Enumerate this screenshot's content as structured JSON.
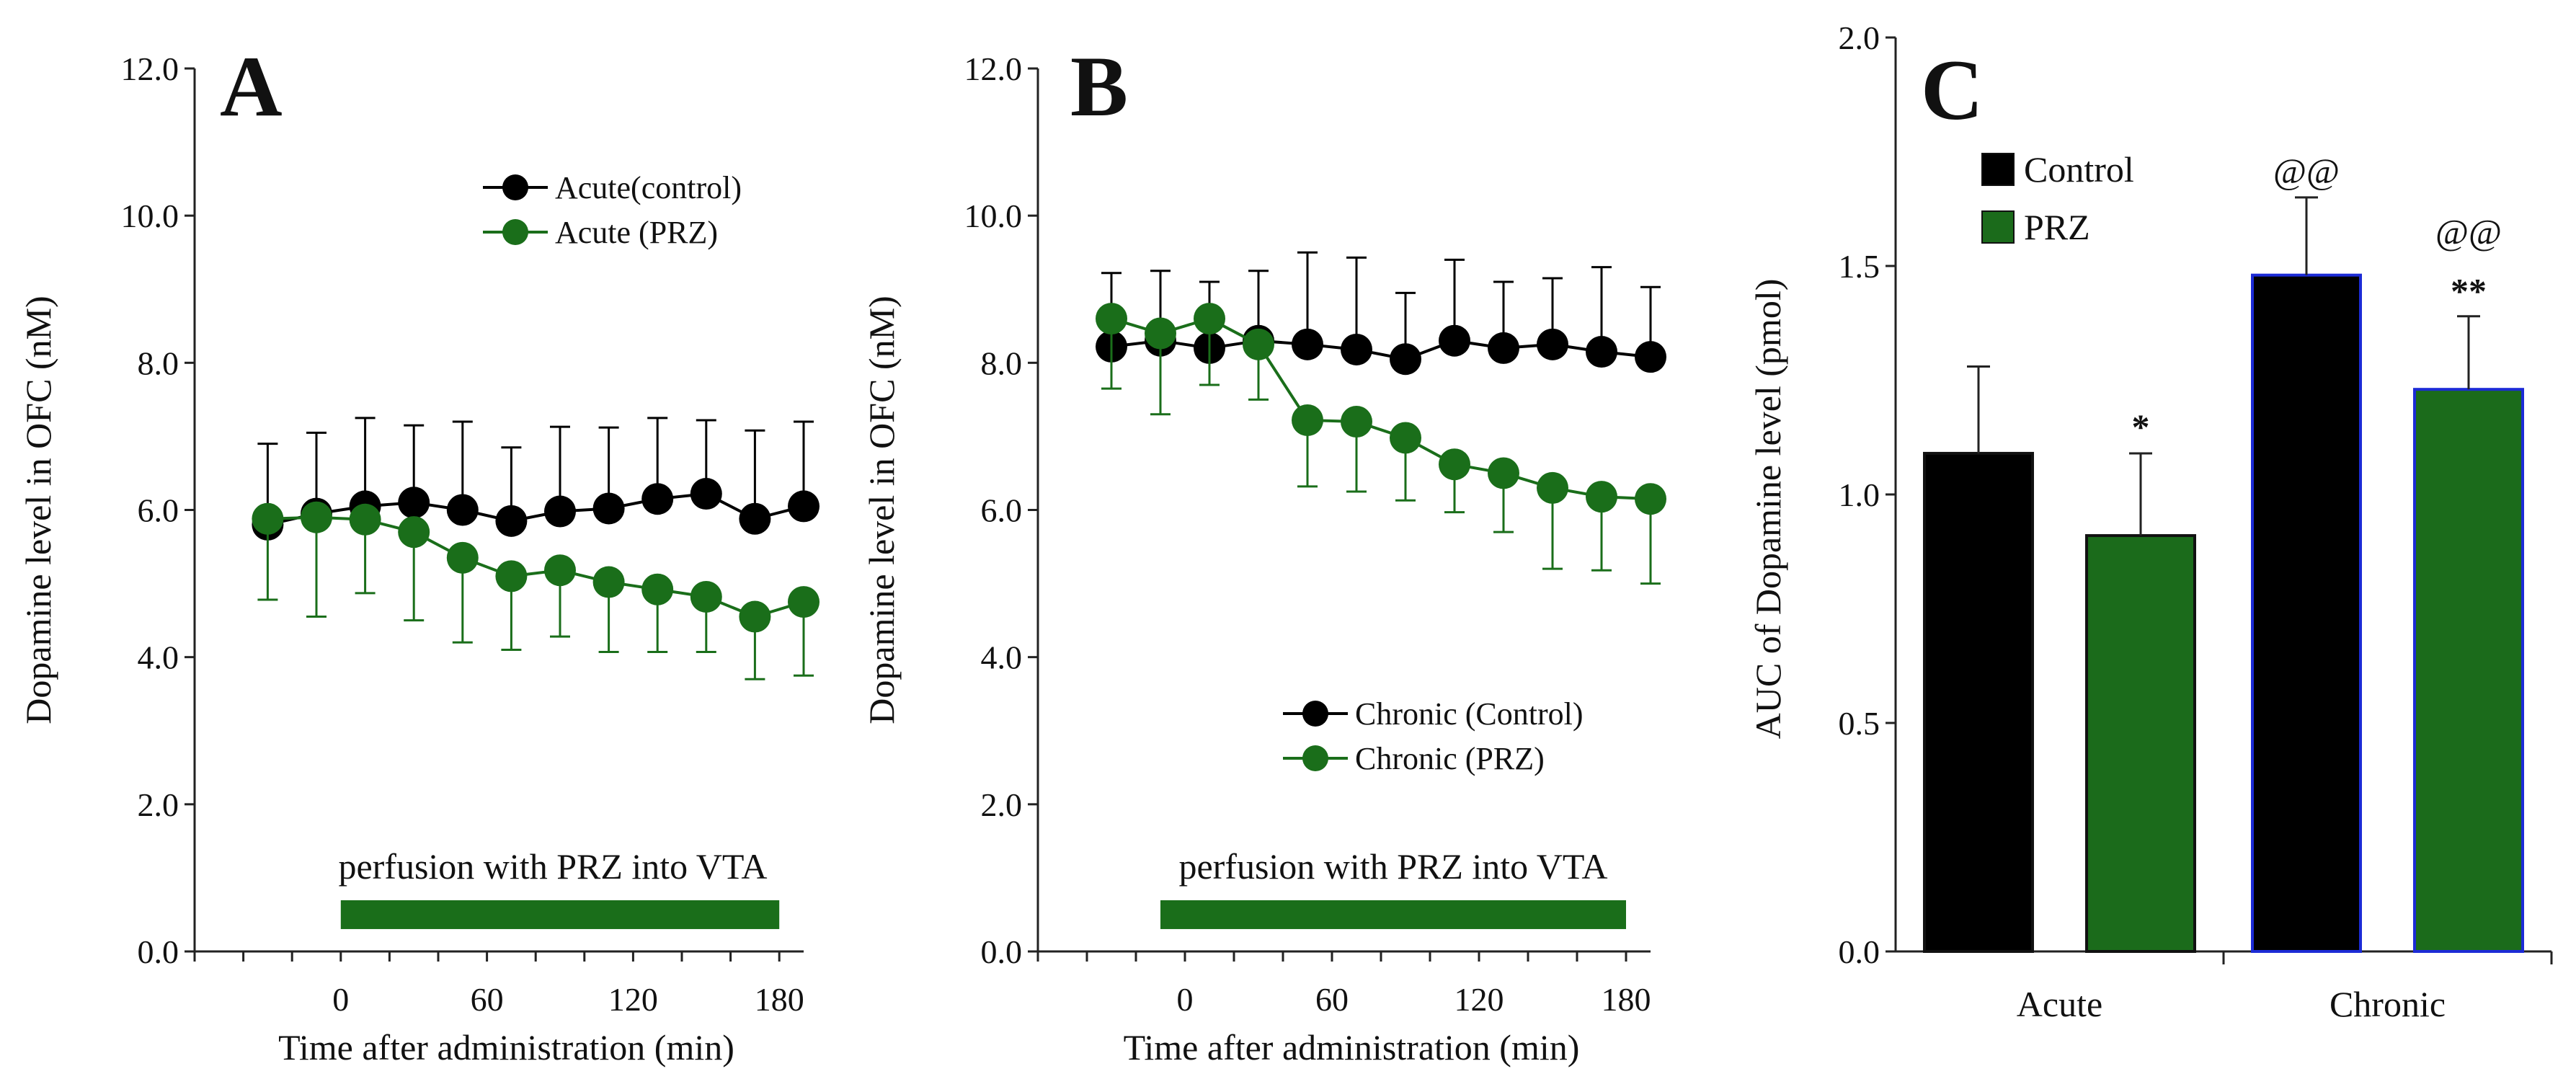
{
  "colors": {
    "control": "#000000",
    "prz": "#1a6e1a",
    "bar_prz": "#1b6b1b",
    "bar_edge": "#1c2bd6"
  },
  "chart_data": [
    {
      "type": "line",
      "panel": "A",
      "x_axis_title": "Time after administration (min)",
      "y_axis_title": "Dopamine level in OFC (nM)",
      "ylim": [
        0,
        12
      ],
      "xlim": [
        -60,
        190
      ],
      "yticks": [
        "0.0",
        "2.0",
        "4.0",
        "6.0",
        "8.0",
        "10.0",
        "12.0"
      ],
      "xticks": [
        "0",
        "60",
        "120",
        "180"
      ],
      "x": [
        -30,
        -10,
        10,
        30,
        50,
        70,
        90,
        110,
        130,
        150,
        170,
        190
      ],
      "series": [
        {
          "name": "Acute(control)",
          "color": "#000000",
          "values": [
            5.8,
            5.95,
            6.05,
            6.1,
            6.0,
            5.85,
            5.98,
            6.02,
            6.15,
            6.22,
            5.88,
            6.05
          ],
          "err": [
            1.1,
            1.1,
            1.2,
            1.05,
            1.2,
            1.0,
            1.15,
            1.1,
            1.1,
            1.0,
            1.2,
            1.15
          ]
        },
        {
          "name": "Acute (PRZ)",
          "color": "#1a6e1a",
          "values": [
            5.88,
            5.9,
            5.87,
            5.7,
            5.35,
            5.1,
            5.18,
            5.02,
            4.92,
            4.82,
            4.55,
            4.75
          ],
          "err": [
            1.1,
            1.35,
            1.0,
            1.2,
            1.15,
            1.0,
            0.9,
            0.95,
            0.85,
            0.75,
            0.85,
            1.0
          ]
        }
      ],
      "legend": "top-right",
      "bar_label": "perfusion with PRZ into VTA",
      "bar_range": [
        0,
        180
      ]
    },
    {
      "type": "line",
      "panel": "B",
      "x_axis_title": "Time after administration (min)",
      "y_axis_title": "Dopamine level in OFC (nM)",
      "ylim": [
        0,
        12
      ],
      "xlim": [
        -60,
        190
      ],
      "yticks": [
        "0.0",
        "2.0",
        "4.0",
        "6.0",
        "8.0",
        "10.0",
        "12.0"
      ],
      "xticks": [
        "0",
        "60",
        "120",
        "180"
      ],
      "x": [
        -30,
        -10,
        10,
        30,
        50,
        70,
        90,
        110,
        130,
        150,
        170,
        190
      ],
      "series": [
        {
          "name": "Chronic (Control)",
          "color": "#000000",
          "values": [
            8.22,
            8.3,
            8.2,
            8.3,
            8.25,
            8.18,
            8.05,
            8.3,
            8.2,
            8.25,
            8.15,
            8.08
          ],
          "err": [
            1.0,
            0.95,
            0.9,
            0.95,
            1.25,
            1.25,
            0.9,
            1.1,
            0.9,
            0.9,
            1.15,
            0.95
          ]
        },
        {
          "name": "Chronic (PRZ)",
          "color": "#1a6e1a",
          "values": [
            8.6,
            8.4,
            8.6,
            8.25,
            7.22,
            7.2,
            6.98,
            6.62,
            6.5,
            6.3,
            6.18,
            6.15
          ],
          "err": [
            0.95,
            1.1,
            0.9,
            0.75,
            0.9,
            0.95,
            0.85,
            0.65,
            0.8,
            1.1,
            1.0,
            1.15
          ]
        }
      ],
      "legend": "bottom-right",
      "bar_label": "perfusion with PRZ into VTA",
      "bar_range": [
        -10,
        180
      ]
    },
    {
      "type": "bar",
      "panel": "C",
      "y_axis_title": "AUC of Dopamine level (pmol)",
      "ylim": [
        0,
        2.0
      ],
      "yticks": [
        "0.0",
        "0.5",
        "1.0",
        "1.5",
        "2.0"
      ],
      "categories": [
        "Acute",
        "Chronic"
      ],
      "series": [
        {
          "name": "Control",
          "color": "#000000",
          "values": [
            1.09,
            1.48
          ],
          "err": [
            0.19,
            0.17
          ]
        },
        {
          "name": "PRZ",
          "color": "#1b6b1b",
          "values": [
            0.91,
            1.23
          ],
          "err": [
            0.18,
            0.16
          ]
        }
      ],
      "legend": "top-left",
      "annotations": [
        {
          "text": "*",
          "category": "Acute",
          "series": "PRZ"
        },
        {
          "text": "@@",
          "category": "Chronic",
          "series": "Control"
        },
        {
          "text": "@@",
          "category": "Chronic",
          "series": "PRZ"
        },
        {
          "text": "**",
          "category": "Chronic",
          "series": "PRZ"
        }
      ]
    }
  ]
}
